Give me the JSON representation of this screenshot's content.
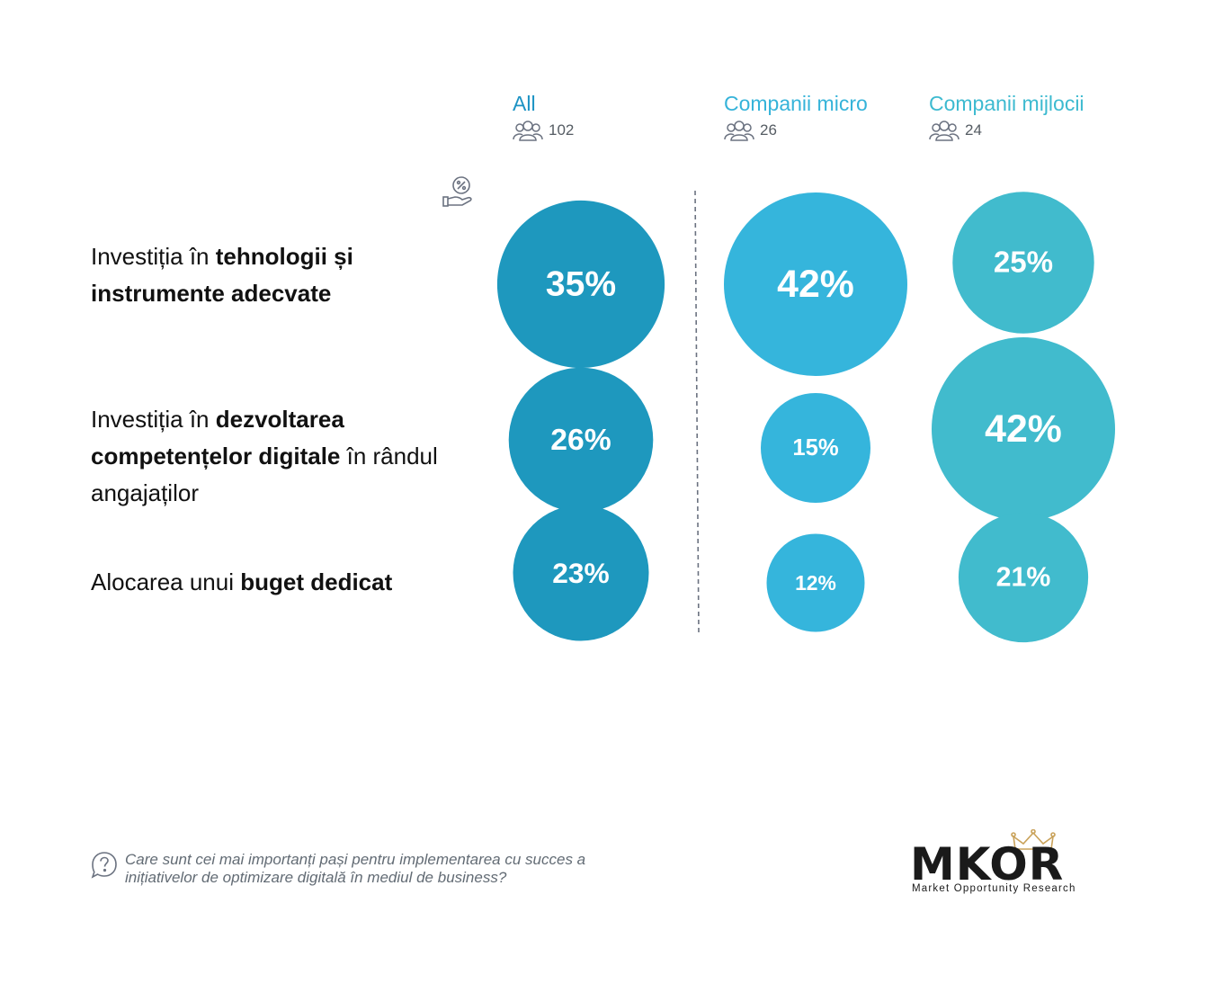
{
  "colors": {
    "all": "#1e98be",
    "micro": "#35b5dc",
    "mijlocii": "#41bbcd",
    "all_title": "#1d93c4",
    "micro_title": "#35b3d9",
    "mijlocii_title": "#3dbad0",
    "divider": "#6b7280"
  },
  "columns": [
    {
      "title": "All",
      "count": "102",
      "icon": "people-icon"
    },
    {
      "title": "Companii micro",
      "count": "26",
      "icon": "people-icon"
    },
    {
      "title": "Companii mijlocii",
      "count": "24",
      "icon": "people-icon"
    }
  ],
  "rows": [
    {
      "parts": [
        {
          "text": "Investiția în ",
          "bold": false
        },
        {
          "text": "tehnologii și instrumente adecvate",
          "bold": true
        }
      ]
    },
    {
      "parts": [
        {
          "text": "Investiția în ",
          "bold": false
        },
        {
          "text": "dezvoltarea competențelor digitale",
          "bold": true
        },
        {
          "text": " în rândul angajaților",
          "bold": false
        }
      ]
    },
    {
      "parts": [
        {
          "text": "Alocarea unui ",
          "bold": false
        },
        {
          "text": "buget dedicat",
          "bold": true
        }
      ]
    }
  ],
  "chart_data": {
    "type": "bubble",
    "categories": [
      "Investiția în tehnologii și instrumente adecvate",
      "Investiția în dezvoltarea competențelor digitale în rândul angajaților",
      "Alocarea unui buget dedicat"
    ],
    "series": [
      {
        "name": "All",
        "values": [
          35,
          26,
          23
        ]
      },
      {
        "name": "Companii micro",
        "values": [
          42,
          15,
          12
        ]
      },
      {
        "name": "Companii mijlocii",
        "values": [
          25,
          42,
          21
        ]
      }
    ],
    "value_labels": [
      [
        "35%",
        "26%",
        "23%"
      ],
      [
        "42%",
        "15%",
        "12%"
      ],
      [
        "25%",
        "42%",
        "21%"
      ]
    ],
    "unit": "%"
  },
  "icons": {
    "header": "percent-hand-icon",
    "question": "question-bubble-icon"
  },
  "footer": {
    "question": "Care sunt cei mai importanți pași pentru implementarea cu succes a inițiativelor de optimizare digitală în mediul de business?"
  },
  "logo": {
    "wordmark": "MKOR",
    "tagline": "Market Opportunity Research"
  }
}
